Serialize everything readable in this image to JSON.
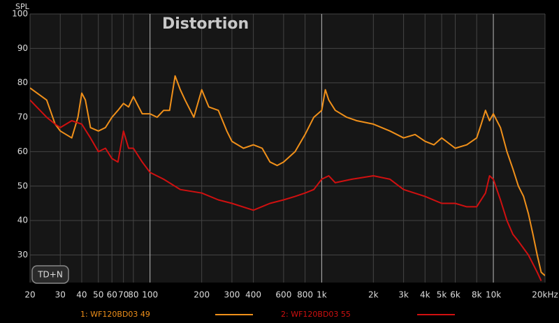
{
  "chart_data": {
    "type": "line",
    "title": "Distortion",
    "y_label": "SPL",
    "xscale": "log",
    "grid": true,
    "button": "TD+N",
    "xlim": [
      20,
      20000
    ],
    "ylim": [
      22,
      100
    ],
    "xticks": [
      20,
      30,
      40,
      50,
      60,
      70,
      80,
      100,
      200,
      300,
      400,
      600,
      800,
      {
        "value": 1000,
        "label": "1k"
      },
      {
        "value": 2000,
        "label": "2k"
      },
      {
        "value": 3000,
        "label": "3k"
      },
      {
        "value": 4000,
        "label": "4k"
      },
      {
        "value": 5000,
        "label": "5k"
      },
      {
        "value": 6000,
        "label": "6k"
      },
      {
        "value": 8000,
        "label": "8k"
      },
      {
        "value": 10000,
        "label": "10k"
      },
      {
        "value": 20000,
        "label": "20kHz"
      }
    ],
    "yticks": [
      30,
      40,
      50,
      60,
      70,
      80,
      90,
      100
    ],
    "series": [
      {
        "name": "1: WF120BD03 49",
        "color": "#f0901a",
        "x": [
          20,
          25,
          28,
          30,
          35,
          38,
          40,
          42,
          45,
          50,
          55,
          60,
          65,
          70,
          75,
          80,
          90,
          100,
          110,
          120,
          130,
          140,
          150,
          160,
          180,
          200,
          220,
          250,
          280,
          300,
          350,
          400,
          450,
          500,
          550,
          600,
          700,
          800,
          900,
          1000,
          1050,
          1100,
          1200,
          1400,
          1600,
          2000,
          2500,
          3000,
          3500,
          4000,
          4500,
          5000,
          6000,
          7000,
          8000,
          8500,
          9000,
          9500,
          10000,
          11000,
          12000,
          13000,
          14000,
          15000,
          16000,
          17000,
          18000,
          19000,
          20000
        ],
        "values": [
          78.5,
          75,
          68,
          66,
          64,
          70,
          77,
          75,
          67,
          66,
          67,
          70,
          72,
          74,
          73,
          76,
          71,
          71,
          70,
          72,
          72,
          82,
          78,
          75,
          70,
          78,
          73,
          72,
          66,
          63,
          61,
          62,
          61,
          57,
          56,
          57,
          60,
          65,
          70,
          72,
          78,
          75,
          72,
          70,
          69,
          68,
          66,
          64,
          65,
          63,
          62,
          64,
          61,
          62,
          64,
          68,
          72,
          69,
          71,
          67,
          60,
          55,
          50,
          47,
          42,
          36,
          30,
          25,
          24
        ]
      },
      {
        "name": "2: WF120BD03 55",
        "color": "#d01010",
        "x": [
          20,
          25,
          28,
          30,
          35,
          40,
          45,
          50,
          55,
          60,
          65,
          70,
          75,
          80,
          90,
          100,
          120,
          150,
          200,
          250,
          300,
          400,
          500,
          600,
          700,
          800,
          900,
          1000,
          1100,
          1200,
          1500,
          2000,
          2500,
          3000,
          4000,
          5000,
          6000,
          7000,
          8000,
          9000,
          9500,
          10000,
          11000,
          12000,
          13000,
          14000,
          16000,
          18000,
          19000
        ],
        "values": [
          75,
          70,
          68,
          67,
          69,
          68,
          64,
          60,
          61,
          58,
          57,
          66,
          61,
          61,
          57,
          54,
          52,
          49,
          48,
          46,
          45,
          43,
          45,
          46,
          47,
          48,
          49,
          52,
          53,
          51,
          52,
          53,
          52,
          49,
          47,
          45,
          45,
          44,
          44,
          48,
          53,
          52,
          46,
          40,
          36,
          34,
          30,
          25,
          22.5
        ]
      }
    ]
  }
}
